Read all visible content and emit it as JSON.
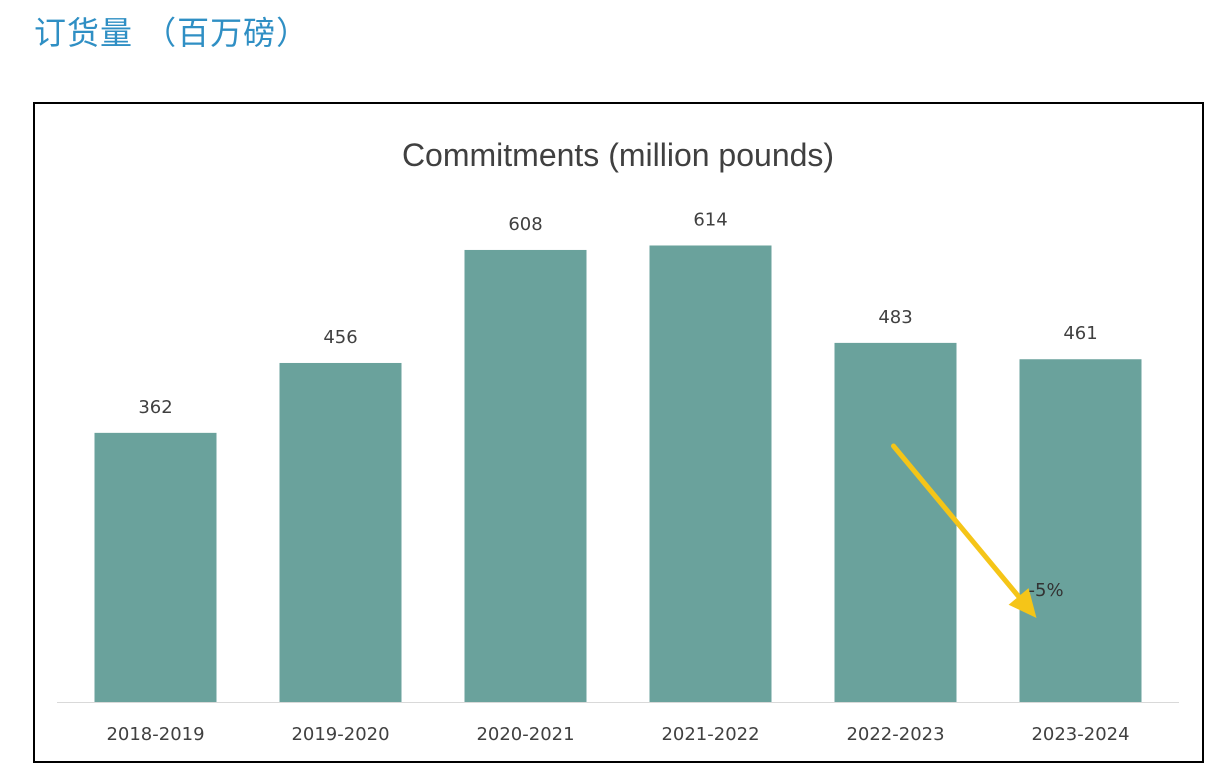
{
  "page": {
    "heading": "订货量 （百万磅）"
  },
  "colors": {
    "bar": "#6aa29c",
    "arrow": "#f5c518",
    "axis": "#d9d9d9",
    "text": "#404040",
    "heading": "#2f8fc4"
  },
  "chart_data": {
    "type": "bar",
    "title": "Commitments (million pounds)",
    "xlabel": "",
    "ylabel": "",
    "categories": [
      "2018-2019",
      "2019-2020",
      "2020-2021",
      "2021-2022",
      "2022-2023",
      "2023-2024"
    ],
    "values": [
      362,
      456,
      608,
      614,
      483,
      461
    ],
    "ylim": [
      0,
      700
    ],
    "grid": false,
    "legend": "none",
    "annotations": [
      {
        "text": "-5%",
        "from_category": "2022-2023",
        "to_category": "2023-2024",
        "icon": "down-right-arrow-icon"
      }
    ]
  }
}
